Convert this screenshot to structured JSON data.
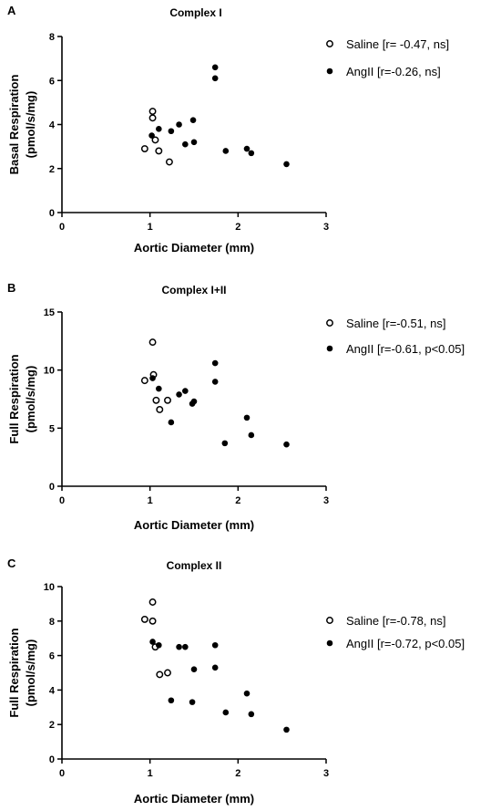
{
  "chart_data": [
    {
      "type": "scatter",
      "panel_label": "A",
      "title": "Complex I",
      "xlabel": "Aortic Diameter (mm)",
      "ylabel_line1": "Basal Respiration",
      "ylabel_line2": "(pmol/s/mg)",
      "xlim": [
        0,
        3
      ],
      "ylim": [
        0,
        8
      ],
      "xticks": [
        0,
        1,
        2,
        3
      ],
      "yticks": [
        0,
        2,
        4,
        6,
        8
      ],
      "legend_position": "top-right",
      "grid": false,
      "series": [
        {
          "name": "Saline [r= -0.47, ns]",
          "marker": "open-circle",
          "points": [
            [
              0.94,
              2.9
            ],
            [
              1.03,
              4.6
            ],
            [
              1.03,
              4.3
            ],
            [
              1.06,
              3.3
            ],
            [
              1.1,
              2.8
            ],
            [
              1.22,
              2.3
            ]
          ]
        },
        {
          "name": "AngII [r=-0.26, ns]",
          "marker": "filled-circle",
          "points": [
            [
              1.02,
              3.5
            ],
            [
              1.1,
              3.8
            ],
            [
              1.24,
              3.7
            ],
            [
              1.33,
              4.0
            ],
            [
              1.4,
              3.1
            ],
            [
              1.49,
              4.2
            ],
            [
              1.5,
              3.2
            ],
            [
              1.74,
              6.6
            ],
            [
              1.74,
              6.1
            ],
            [
              1.86,
              2.8
            ],
            [
              2.1,
              2.9
            ],
            [
              2.15,
              2.7
            ],
            [
              2.55,
              2.2
            ]
          ]
        }
      ]
    },
    {
      "type": "scatter",
      "panel_label": "B",
      "title": "Complex I+II",
      "xlabel": "Aortic Diameter (mm)",
      "ylabel_line1": "Full Respiration",
      "ylabel_line2": "(pmol/s/mg)",
      "xlim": [
        0,
        3
      ],
      "ylim": [
        0,
        15
      ],
      "xticks": [
        0,
        1,
        2,
        3
      ],
      "yticks": [
        0,
        5,
        10,
        15
      ],
      "legend_position": "top-right",
      "grid": false,
      "series": [
        {
          "name": "Saline [r=-0.51, ns]",
          "marker": "open-circle",
          "points": [
            [
              0.94,
              9.1
            ],
            [
              1.03,
              12.4
            ],
            [
              1.04,
              9.6
            ],
            [
              1.07,
              7.4
            ],
            [
              1.11,
              6.6
            ],
            [
              1.2,
              7.4
            ]
          ]
        },
        {
          "name": "AngII [r=-0.61, p<0.05]",
          "marker": "filled-circle",
          "points": [
            [
              1.03,
              9.3
            ],
            [
              1.1,
              8.4
            ],
            [
              1.24,
              5.5
            ],
            [
              1.33,
              7.9
            ],
            [
              1.4,
              8.2
            ],
            [
              1.48,
              7.1
            ],
            [
              1.5,
              7.3
            ],
            [
              1.74,
              10.6
            ],
            [
              1.74,
              9.0
            ],
            [
              1.85,
              3.7
            ],
            [
              2.1,
              5.9
            ],
            [
              2.15,
              4.4
            ],
            [
              2.55,
              3.6
            ]
          ]
        }
      ]
    },
    {
      "type": "scatter",
      "panel_label": "C",
      "title": "Complex II",
      "xlabel": "Aortic Diameter (mm)",
      "ylabel_line1": "Full Respiration",
      "ylabel_line2": "(pmol/s/mg)",
      "xlim": [
        0,
        3
      ],
      "ylim": [
        0,
        10
      ],
      "xticks": [
        0,
        1,
        2,
        3
      ],
      "yticks": [
        0,
        2,
        4,
        6,
        8,
        10
      ],
      "legend_position": "right",
      "grid": false,
      "series": [
        {
          "name": "Saline [r=-0.78, ns]",
          "marker": "open-circle",
          "points": [
            [
              0.94,
              8.1
            ],
            [
              1.03,
              9.1
            ],
            [
              1.03,
              8.0
            ],
            [
              1.06,
              6.5
            ],
            [
              1.11,
              4.9
            ],
            [
              1.2,
              5.0
            ]
          ]
        },
        {
          "name": "AngII [r=-0.72, p<0.05]",
          "marker": "filled-circle",
          "points": [
            [
              1.03,
              6.8
            ],
            [
              1.1,
              6.6
            ],
            [
              1.24,
              3.4
            ],
            [
              1.33,
              6.5
            ],
            [
              1.4,
              6.5
            ],
            [
              1.48,
              3.3
            ],
            [
              1.5,
              5.2
            ],
            [
              1.74,
              6.6
            ],
            [
              1.74,
              5.3
            ],
            [
              1.86,
              2.7
            ],
            [
              2.1,
              3.8
            ],
            [
              2.15,
              2.6
            ],
            [
              2.55,
              1.7
            ]
          ]
        }
      ]
    }
  ]
}
